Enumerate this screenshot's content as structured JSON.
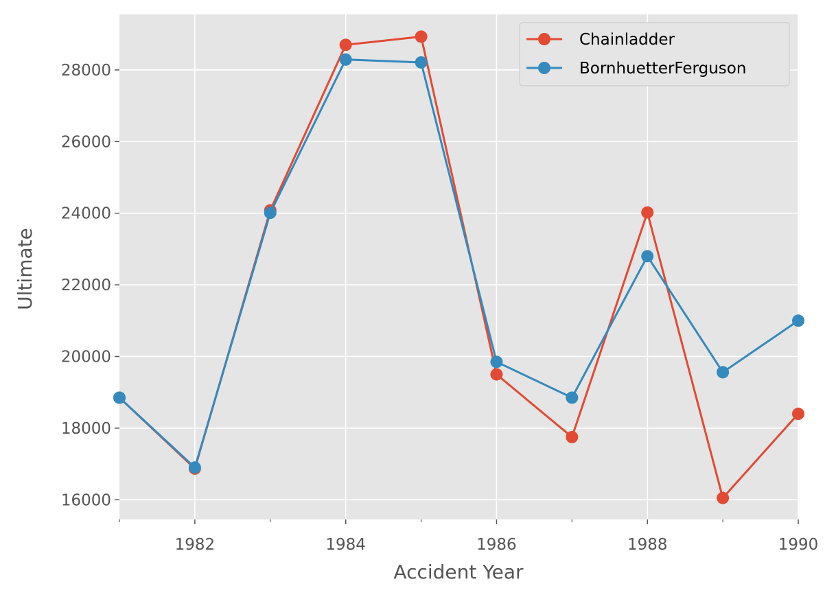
{
  "chart_data": {
    "type": "line",
    "title": "",
    "xlabel": "Accident Year",
    "ylabel": "Ultimate",
    "x": [
      1981,
      1982,
      1983,
      1984,
      1985,
      1986,
      1987,
      1988,
      1989,
      1990
    ],
    "xlim": [
      1981,
      1990
    ],
    "ylim": [
      15450,
      29550
    ],
    "xticks_major": [
      1982,
      1984,
      1986,
      1988,
      1990
    ],
    "xticks_minor": [
      1981,
      1983,
      1985,
      1987,
      1989
    ],
    "yticks": [
      16000,
      18000,
      20000,
      22000,
      24000,
      26000,
      28000
    ],
    "grid": true,
    "legend_position": "top-right",
    "series": [
      {
        "name": "Chainladder",
        "color": "#e24a33",
        "values": [
          18850,
          16870,
          24080,
          28700,
          28930,
          19500,
          17750,
          24020,
          16050,
          18400
        ]
      },
      {
        "name": "BornhuetterFerguson",
        "color": "#348abd",
        "values": [
          18850,
          16900,
          24010,
          28290,
          28210,
          19850,
          18850,
          22800,
          19560,
          21000
        ]
      }
    ]
  }
}
